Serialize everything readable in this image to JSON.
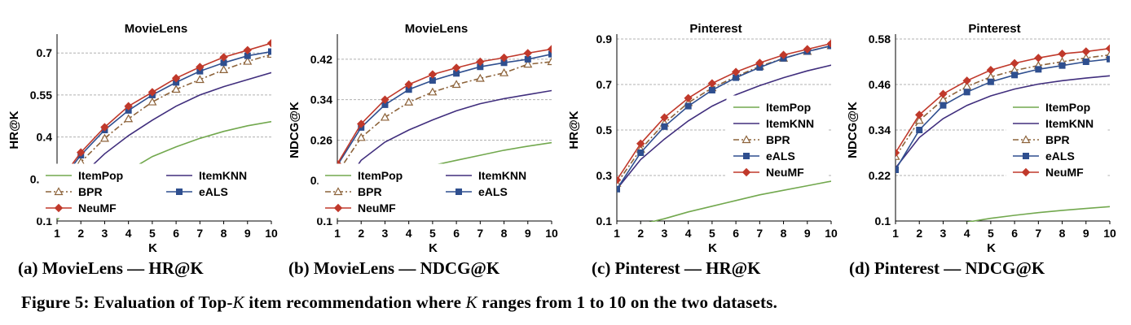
{
  "chart_data": [
    {
      "type": "line",
      "title": "MovieLens",
      "xlabel": "K",
      "ylabel": "HR@K",
      "x": [
        1,
        2,
        3,
        4,
        5,
        6,
        7,
        8,
        9,
        10
      ],
      "xlim": [
        1,
        10
      ],
      "ylim": [
        0.1,
        0.75
      ],
      "yticks": [
        0.1,
        0.25,
        0.4,
        0.55,
        0.7
      ],
      "ytick_labels": [
        "0.1",
        "0.25",
        "0.4",
        "0.55",
        "0.7"
      ],
      "grid": true,
      "legend": "bottom-center",
      "legend_columns": 2,
      "series": [
        {
          "name": "ItemPop",
          "values": [
            0.105,
            0.175,
            0.235,
            0.28,
            0.33,
            0.365,
            0.395,
            0.42,
            0.44,
            0.455
          ]
        },
        {
          "name": "ItemKNN",
          "values": [
            0.16,
            0.26,
            0.34,
            0.405,
            0.46,
            0.51,
            0.55,
            0.58,
            0.605,
            0.63
          ]
        },
        {
          "name": "BPR",
          "values": [
            0.2,
            0.31,
            0.395,
            0.465,
            0.525,
            0.57,
            0.605,
            0.64,
            0.67,
            0.695
          ]
        },
        {
          "name": "eALS",
          "values": [
            0.225,
            0.335,
            0.425,
            0.495,
            0.55,
            0.595,
            0.635,
            0.665,
            0.69,
            0.705
          ]
        },
        {
          "name": "NeuMF",
          "values": [
            0.23,
            0.345,
            0.435,
            0.51,
            0.56,
            0.61,
            0.65,
            0.685,
            0.71,
            0.735
          ]
        }
      ]
    },
    {
      "type": "line",
      "title": "MovieLens",
      "xlabel": "K",
      "ylabel": "NDCG@K",
      "x": [
        1,
        2,
        3,
        4,
        5,
        6,
        7,
        8,
        9,
        10
      ],
      "xlim": [
        1,
        10
      ],
      "ylim": [
        0.1,
        0.46
      ],
      "yticks": [
        0.1,
        0.18,
        0.26,
        0.34,
        0.42
      ],
      "ytick_labels": [
        "0.1",
        "0.18",
        "0.26",
        "0.34",
        "0.42"
      ],
      "grid": true,
      "legend": "bottom-center",
      "legend_columns": 2,
      "series": [
        {
          "name": "ItemPop",
          "values": [
            0.105,
            0.15,
            0.175,
            0.195,
            0.21,
            0.22,
            0.23,
            0.24,
            0.248,
            0.255
          ]
        },
        {
          "name": "ItemKNN",
          "values": [
            0.152,
            0.22,
            0.256,
            0.28,
            0.3,
            0.318,
            0.332,
            0.342,
            0.35,
            0.358
          ]
        },
        {
          "name": "BPR",
          "values": [
            0.195,
            0.265,
            0.305,
            0.335,
            0.355,
            0.37,
            0.382,
            0.393,
            0.41,
            0.415
          ]
        },
        {
          "name": "eALS",
          "values": [
            0.21,
            0.285,
            0.33,
            0.36,
            0.378,
            0.392,
            0.405,
            0.413,
            0.42,
            0.43
          ]
        },
        {
          "name": "NeuMF",
          "values": [
            0.213,
            0.292,
            0.34,
            0.37,
            0.39,
            0.403,
            0.415,
            0.423,
            0.432,
            0.44
          ]
        }
      ]
    },
    {
      "type": "line",
      "title": "Pinterest",
      "xlabel": "K",
      "ylabel": "HR@K",
      "x": [
        1,
        2,
        3,
        4,
        5,
        6,
        7,
        8,
        9,
        10
      ],
      "xlim": [
        1,
        10
      ],
      "ylim": [
        0.1,
        0.9
      ],
      "yticks": [
        0.1,
        0.3,
        0.5,
        0.7,
        0.9
      ],
      "ytick_labels": [
        "0.1",
        "0.3",
        "0.5",
        "0.7",
        "0.9"
      ],
      "grid": true,
      "legend": "right",
      "legend_columns": 1,
      "series": [
        {
          "name": "ItemPop",
          "values": [
            0.06,
            0.085,
            0.11,
            0.14,
            0.165,
            0.19,
            0.215,
            0.235,
            0.255,
            0.275
          ]
        },
        {
          "name": "ItemKNN",
          "values": [
            0.24,
            0.37,
            0.46,
            0.54,
            0.605,
            0.655,
            0.695,
            0.73,
            0.76,
            0.785
          ]
        },
        {
          "name": "BPR",
          "values": [
            0.265,
            0.415,
            0.53,
            0.62,
            0.685,
            0.735,
            0.78,
            0.815,
            0.845,
            0.87
          ]
        },
        {
          "name": "eALS",
          "values": [
            0.24,
            0.4,
            0.515,
            0.605,
            0.675,
            0.73,
            0.775,
            0.815,
            0.845,
            0.87
          ]
        },
        {
          "name": "NeuMF",
          "values": [
            0.28,
            0.44,
            0.555,
            0.64,
            0.705,
            0.755,
            0.795,
            0.83,
            0.855,
            0.88
          ]
        }
      ]
    },
    {
      "type": "line",
      "title": "Pinterest",
      "xlabel": "K",
      "ylabel": "NDCG@K",
      "x": [
        1,
        2,
        3,
        4,
        5,
        6,
        7,
        8,
        9,
        10
      ],
      "xlim": [
        1,
        10
      ],
      "ylim": [
        0.1,
        0.58
      ],
      "yticks": [
        0.1,
        0.22,
        0.34,
        0.46,
        0.58
      ],
      "ytick_labels": [
        "0.1",
        "0.22",
        "0.34",
        "0.46",
        "0.58"
      ],
      "grid": true,
      "legend": "right",
      "legend_columns": 1,
      "series": [
        {
          "name": "ItemPop",
          "values": [
            0.06,
            0.075,
            0.085,
            0.097,
            0.107,
            0.115,
            0.122,
            0.128,
            0.133,
            0.138
          ]
        },
        {
          "name": "ItemKNN",
          "values": [
            0.24,
            0.32,
            0.37,
            0.405,
            0.43,
            0.448,
            0.461,
            0.47,
            0.477,
            0.483
          ]
        },
        {
          "name": "BPR",
          "values": [
            0.27,
            0.365,
            0.42,
            0.455,
            0.48,
            0.497,
            0.51,
            0.52,
            0.53,
            0.538
          ]
        },
        {
          "name": "eALS",
          "values": [
            0.235,
            0.34,
            0.405,
            0.44,
            0.467,
            0.485,
            0.5,
            0.51,
            0.52,
            0.527
          ]
        },
        {
          "name": "NeuMF",
          "values": [
            0.28,
            0.38,
            0.435,
            0.47,
            0.498,
            0.516,
            0.53,
            0.541,
            0.547,
            0.555
          ]
        }
      ]
    }
  ],
  "series_styles": [
    {
      "name": "ItemPop",
      "color": "#72A84E",
      "dash": "solid",
      "marker": "none"
    },
    {
      "name": "ItemKNN",
      "color": "#402E7D",
      "dash": "solid",
      "marker": "none"
    },
    {
      "name": "BPR",
      "color": "#8C6239",
      "dash": "dash-dot",
      "marker": "triangle-open"
    },
    {
      "name": "eALS",
      "color": "#2F4F8F",
      "dash": "solid",
      "marker": "square"
    },
    {
      "name": "NeuMF",
      "color": "#C0392B",
      "dash": "solid",
      "marker": "diamond"
    }
  ],
  "captions": [
    "(a) MovieLens — HR@K",
    "(b) MovieLens — NDCG@K",
    "(c) Pinterest — HR@K",
    "(d) Pinterest — NDCG@K"
  ],
  "figure_caption": {
    "prefix": "Figure 5: Evaluation of Top-",
    "k1": "K",
    "middle": " item recommendation where ",
    "k2": "K",
    "suffix": " ranges from 1 to 10 on the two datasets."
  }
}
